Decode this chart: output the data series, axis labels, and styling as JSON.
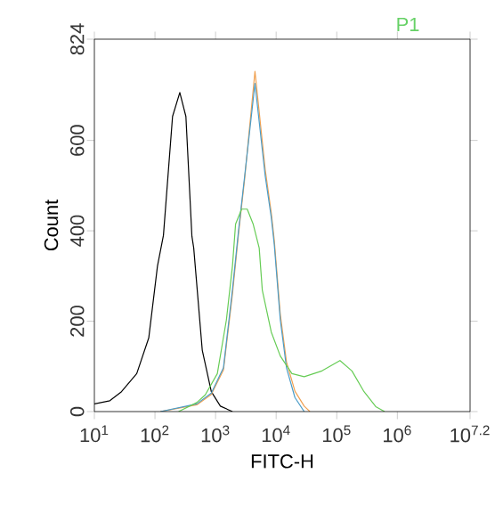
{
  "chart_data": {
    "type": "line",
    "xlabel": "FITC-H",
    "ylabel": "Count",
    "annotations": [
      "P1"
    ],
    "log": "x",
    "xlim": [
      10,
      15848932
    ],
    "ylim": [
      0,
      824
    ],
    "xticks": [
      {
        "value": 10,
        "label": "10$^{1}$"
      },
      {
        "value": 100,
        "label": "10$^{2}$"
      },
      {
        "value": 1000,
        "label": "10$^{3}$"
      },
      {
        "value": 10000,
        "label": "10$^{4}$"
      },
      {
        "value": 100000,
        "label": "10$^{5}$"
      },
      {
        "value": 1000000,
        "label": "10$^{6}$"
      },
      {
        "value": 15848932,
        "label": "10$^{7.2}$"
      }
    ],
    "yticks": [
      0,
      200,
      400,
      600,
      824
    ],
    "marker": "none",
    "line_style": "solid",
    "series": [
      {
        "color": "#000000",
        "x": [
          10,
          18,
          28,
          50,
          79,
          110,
          138,
          195,
          257,
          324,
          407,
          436,
          603,
          851,
          1200,
          1900
        ],
        "values": [
          17,
          24,
          44,
          84,
          163,
          322,
          390,
          653,
          706,
          653,
          388,
          362,
          136,
          44,
          12,
          0
        ]
      },
      {
        "color": "#f0a050",
        "x": [
          123,
          490,
          851,
          1350,
          1900,
          2400,
          3020,
          4470,
          6600,
          8300,
          9300,
          11700,
          14800,
          20400,
          29000,
          36000
        ],
        "values": [
          0,
          15,
          38,
          92,
          260,
          395,
          515,
          753,
          535,
          440,
          380,
          215,
          110,
          45,
          12,
          0
        ]
      },
      {
        "color": "#4a9cc8",
        "x": [
          123,
          490,
          851,
          1350,
          1900,
          2400,
          3020,
          4470,
          6600,
          8300,
          9300,
          11700,
          14800,
          20400,
          29000
        ],
        "values": [
          0,
          17,
          41,
          97,
          270,
          402,
          521,
          726,
          521,
          430,
          370,
          203,
          97,
          31,
          0
        ]
      },
      {
        "color": "#66cc55",
        "x": [
          245,
          490,
          676,
          1070,
          1510,
          1900,
          2140,
          2690,
          3330,
          4170,
          5250,
          5900,
          8300,
          11700,
          18200,
          29000,
          57000,
          113000,
          178000,
          282000,
          440000,
          616000
        ],
        "values": [
          0,
          20,
          37,
          84,
          203,
          322,
          415,
          448,
          448,
          415,
          362,
          269,
          176,
          123,
          84,
          77,
          90,
          113,
          90,
          44,
          11,
          0
        ]
      }
    ]
  }
}
